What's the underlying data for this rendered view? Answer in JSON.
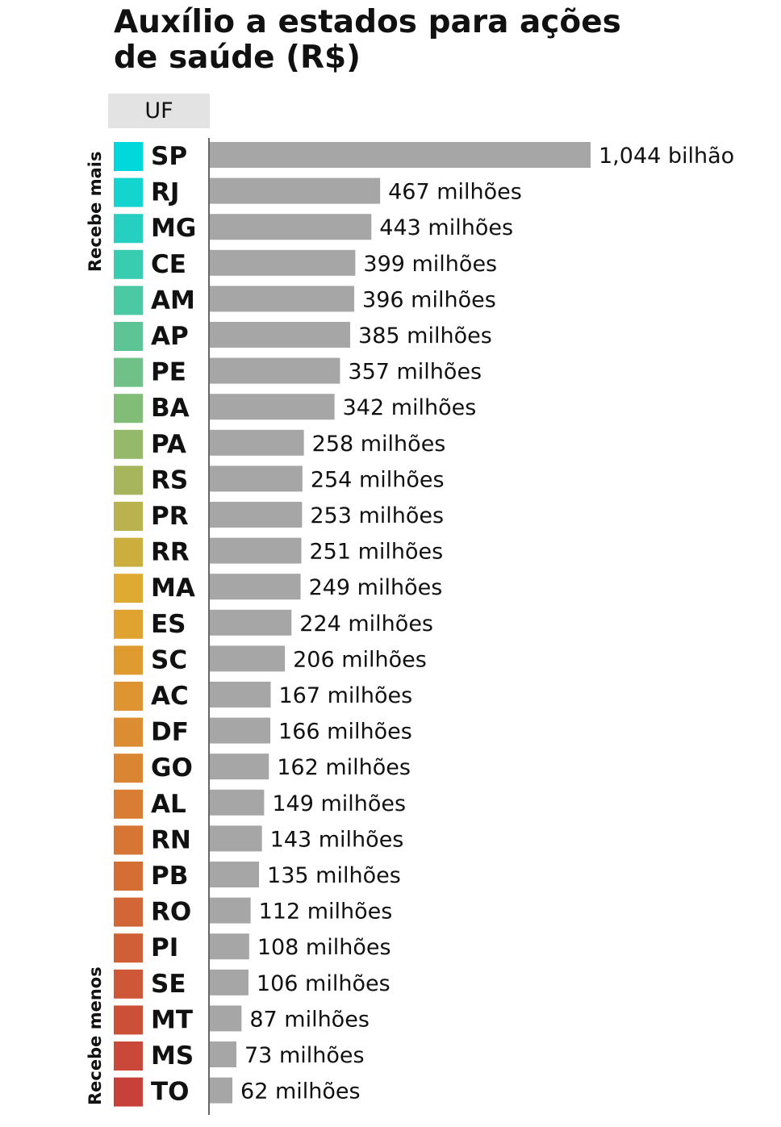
{
  "title_line1": "Auxílio a estados para ações",
  "title_line2": "de saúde (R$)",
  "column_header": "UF",
  "side_labels": {
    "top": "Recebe mais",
    "bottom": "Recebe menos"
  },
  "chart_data": {
    "type": "bar",
    "orientation": "horizontal",
    "title": "Auxílio a estados para ações de saúde (R$)",
    "unit": "R$ milhões",
    "categories": [
      "SP",
      "RJ",
      "MG",
      "CE",
      "AM",
      "AP",
      "PE",
      "BA",
      "PA",
      "RS",
      "PR",
      "RR",
      "MA",
      "ES",
      "SC",
      "AC",
      "DF",
      "GO",
      "AL",
      "RN",
      "PB",
      "RO",
      "PI",
      "SE",
      "MT",
      "MS",
      "TO"
    ],
    "values": [
      1044,
      467,
      443,
      399,
      396,
      385,
      357,
      342,
      258,
      254,
      253,
      251,
      249,
      224,
      206,
      167,
      166,
      162,
      149,
      143,
      135,
      112,
      108,
      106,
      87,
      73,
      62
    ],
    "data_labels": [
      "1,044 bilhão",
      "467 milhões",
      "443 milhões",
      "399 milhões",
      "396 milhões",
      "385 milhões",
      "357 milhões",
      "342 milhões",
      "258 milhões",
      "254 milhões",
      "253 milhões",
      "251 milhões",
      "249 milhões",
      "224 milhões",
      "206 milhões",
      "167 milhões",
      "166 milhões",
      "162 milhões",
      "149 milhões",
      "143 milhões",
      "135 milhões",
      "112 milhões",
      "108 milhões",
      "106 milhões",
      "87 milhões",
      "73 milhões",
      "62 milhões"
    ],
    "xlim": [
      0,
      1044
    ],
    "colors": {
      "bar": "#a6a6a6",
      "swatch_start": "#00d8dc",
      "swatch_mid": "#e3a92e",
      "swatch_end": "#c8403a"
    }
  }
}
